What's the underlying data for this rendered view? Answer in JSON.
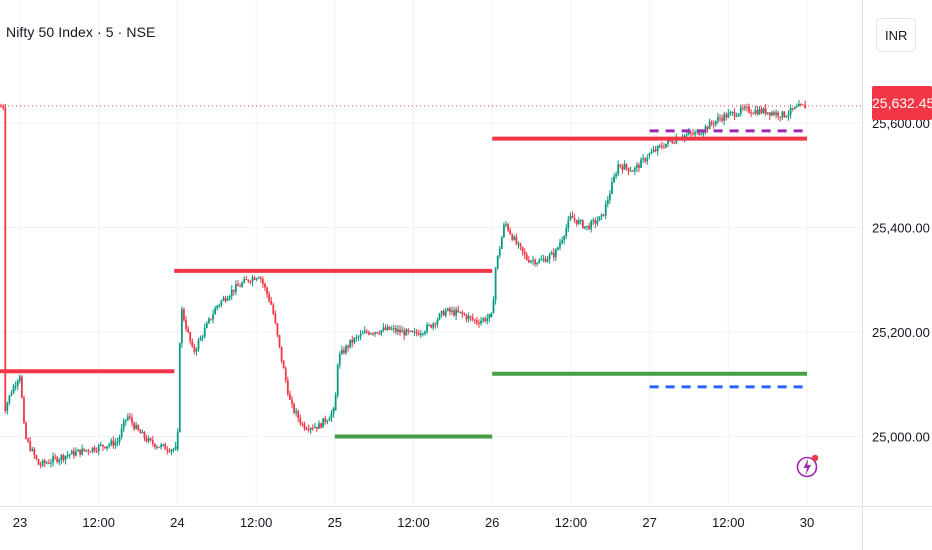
{
  "header": {
    "symbol_title": "Nifty 50 Index · 5 · NSE"
  },
  "currency_button": "INR",
  "last_price_label": "25,632.45",
  "colors": {
    "up": "#089981",
    "down": "#f23645",
    "resistance": "#f23645",
    "support": "#43a047",
    "purple_dash": "#9c27b0",
    "blue_dash": "#2962ff",
    "grid": "#f0f3fa",
    "axis_text": "#131722"
  },
  "chart_data": {
    "type": "candlestick",
    "instrument": "Nifty 50 Index",
    "interval": "5",
    "exchange": "NSE",
    "last_price": 25632.45,
    "y_ticks": [
      "25,000.00",
      "25,200.00",
      "25,400.00",
      "25,600.00"
    ],
    "y_tick_values": [
      25000,
      25200,
      25400,
      25600
    ],
    "x_ticks": [
      "23",
      "12:00",
      "24",
      "12:00",
      "25",
      "12:00",
      "26",
      "12:00",
      "27",
      "12:00",
      "30"
    ],
    "x_tick_index": [
      0,
      0.5,
      1,
      1.5,
      2,
      2.5,
      3,
      3.5,
      4,
      4.5,
      5
    ],
    "price_path": [
      [
        -0.1,
        25050
      ],
      [
        -0.05,
        25090
      ],
      [
        0.0,
        25120
      ],
      [
        0.03,
        25000
      ],
      [
        0.12,
        24945
      ],
      [
        0.3,
        24965
      ],
      [
        0.5,
        24980
      ],
      [
        0.62,
        24990
      ],
      [
        0.68,
        25040
      ],
      [
        0.75,
        25010
      ],
      [
        0.82,
        24990
      ],
      [
        0.9,
        24980
      ],
      [
        1.0,
        24975
      ],
      [
        1.02,
        25250
      ],
      [
        1.1,
        25160
      ],
      [
        1.25,
        25250
      ],
      [
        1.35,
        25280
      ],
      [
        1.45,
        25300
      ],
      [
        1.52,
        25310
      ],
      [
        1.6,
        25250
      ],
      [
        1.66,
        25150
      ],
      [
        1.72,
        25060
      ],
      [
        1.8,
        25020
      ],
      [
        1.9,
        25020
      ],
      [
        2.0,
        25050
      ],
      [
        2.02,
        25150
      ],
      [
        2.1,
        25180
      ],
      [
        2.2,
        25200
      ],
      [
        2.35,
        25205
      ],
      [
        2.5,
        25195
      ],
      [
        2.6,
        25210
      ],
      [
        2.7,
        25240
      ],
      [
        2.8,
        25235
      ],
      [
        2.9,
        25220
      ],
      [
        3.0,
        25230
      ],
      [
        3.02,
        25320
      ],
      [
        3.08,
        25410
      ],
      [
        3.15,
        25370
      ],
      [
        3.22,
        25340
      ],
      [
        3.3,
        25335
      ],
      [
        3.4,
        25350
      ],
      [
        3.5,
        25420
      ],
      [
        3.6,
        25400
      ],
      [
        3.7,
        25420
      ],
      [
        3.8,
        25520
      ],
      [
        3.9,
        25510
      ],
      [
        4.0,
        25540
      ],
      [
        4.1,
        25560
      ],
      [
        4.2,
        25575
      ],
      [
        4.3,
        25580
      ],
      [
        4.45,
        25610
      ],
      [
        4.6,
        25625
      ],
      [
        4.75,
        25622
      ],
      [
        4.85,
        25615
      ],
      [
        4.95,
        25630
      ],
      [
        5.0,
        25632
      ]
    ],
    "levels": [
      {
        "kind": "resistance",
        "x_from": -0.2,
        "x_to": 0.98,
        "value": 25125
      },
      {
        "kind": "resistance",
        "x_from": 0.98,
        "x_to": 3.0,
        "value": 25317
      },
      {
        "kind": "resistance",
        "x_from": 3.0,
        "x_to": 5.0,
        "value": 25570
      },
      {
        "kind": "support",
        "x_from": 2.0,
        "x_to": 3.0,
        "value": 25000
      },
      {
        "kind": "support",
        "x_from": 3.0,
        "x_to": 5.0,
        "value": 25120
      },
      {
        "kind": "purple_dash",
        "x_from": 4.0,
        "x_to": 5.0,
        "value": 25585
      },
      {
        "kind": "blue_dash",
        "x_from": 4.0,
        "x_to": 5.0,
        "value": 25095
      }
    ],
    "ylim": [
      24910,
      25730
    ],
    "xlim": [
      -0.15,
      5.05
    ]
  }
}
